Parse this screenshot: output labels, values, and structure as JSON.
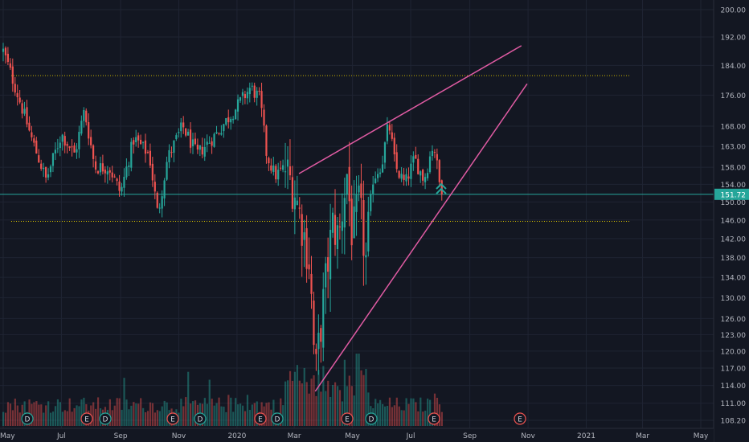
{
  "colors": {
    "background": "#131722",
    "grid": "#1f2433",
    "up": "#26a69a",
    "down": "#ef5350",
    "trendline": "#e05ba3",
    "level": "#c8b400",
    "price_line": "#26a69a",
    "axis_text": "#b2b5be",
    "event_dividend": "#26a69a",
    "event_earnings": "#ef5350"
  },
  "price_axis": {
    "ticks": [
      "200.00",
      "192.00",
      "184.00",
      "176.00",
      "168.00",
      "163.00",
      "158.00",
      "154.00",
      "150.00",
      "146.00",
      "142.00",
      "138.00",
      "134.00",
      "130.00",
      "126.00",
      "123.00",
      "120.00",
      "117.00",
      "114.00",
      "111.00",
      "108.20"
    ],
    "current_label": "151.72"
  },
  "time_axis": {
    "ticks": [
      "May",
      "Jul",
      "Sep",
      "Nov",
      "2020",
      "Mar",
      "May",
      "Jul",
      "Sep",
      "Nov",
      "2021",
      "Mar",
      "May"
    ]
  },
  "events": {
    "labels": [
      "D",
      "E",
      "D",
      "E",
      "D",
      "E",
      "D",
      "E",
      "D",
      "E",
      "E"
    ],
    "types": [
      "dividend",
      "earnings",
      "dividend",
      "earnings",
      "dividend",
      "earnings",
      "dividend",
      "earnings",
      "dividend",
      "earnings",
      "earnings"
    ]
  },
  "chart_data": {
    "type": "candlestick",
    "y_scale": "log",
    "ylim": [
      108.2,
      200
    ],
    "x_range": [
      "2019-05",
      "2021-05"
    ],
    "grid": true,
    "current_price": 151.72,
    "horizontal_levels": [
      181.2,
      145.7
    ],
    "trendlines": [
      {
        "from": {
          "date": "2020-03-06",
          "price": 156.5
        },
        "to": {
          "date": "2020-10-25",
          "price": 189.5
        }
      },
      {
        "from": {
          "date": "2020-03-23",
          "price": 113.0
        },
        "to": {
          "date": "2020-10-31",
          "price": 179.0
        }
      }
    ],
    "price_path": [
      [
        "2019-05-01",
        188
      ],
      [
        "2019-05-15",
        177
      ],
      [
        "2019-06-01",
        164
      ],
      [
        "2019-06-15",
        155
      ],
      [
        "2019-07-01",
        166
      ],
      [
        "2019-07-15",
        161
      ],
      [
        "2019-07-25",
        172
      ],
      [
        "2019-08-05",
        158
      ],
      [
        "2019-08-20",
        158
      ],
      [
        "2019-09-01",
        152
      ],
      [
        "2019-09-15",
        165
      ],
      [
        "2019-10-01",
        161
      ],
      [
        "2019-10-10",
        147
      ],
      [
        "2019-10-20",
        160
      ],
      [
        "2019-11-05",
        168
      ],
      [
        "2019-11-20",
        161
      ],
      [
        "2019-12-10",
        166
      ],
      [
        "2020-01-01",
        173
      ],
      [
        "2020-01-15",
        178
      ],
      [
        "2020-01-25",
        175
      ],
      [
        "2020-02-01",
        161
      ],
      [
        "2020-02-10",
        156
      ],
      [
        "2020-02-20",
        158
      ],
      [
        "2020-03-01",
        153
      ],
      [
        "2020-03-10",
        144
      ],
      [
        "2020-03-17",
        137
      ],
      [
        "2020-03-23",
        115
      ],
      [
        "2020-04-01",
        130
      ],
      [
        "2020-04-10",
        145
      ],
      [
        "2020-04-17",
        142
      ],
      [
        "2020-04-25",
        157
      ],
      [
        "2020-05-01",
        142
      ],
      [
        "2020-05-08",
        150
      ],
      [
        "2020-05-15",
        137
      ],
      [
        "2020-05-22",
        155
      ],
      [
        "2020-06-01",
        159
      ],
      [
        "2020-06-08",
        169
      ],
      [
        "2020-06-15",
        158
      ],
      [
        "2020-06-25",
        154
      ],
      [
        "2020-07-05",
        160
      ],
      [
        "2020-07-15",
        155
      ],
      [
        "2020-07-25",
        164
      ],
      [
        "2020-08-01",
        153
      ],
      [
        "2020-08-05",
        151.7
      ]
    ],
    "volume": "histogram below price, height relative to each day's volume"
  }
}
